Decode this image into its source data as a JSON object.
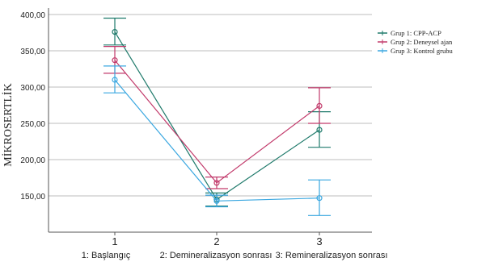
{
  "chart_data": {
    "type": "line",
    "ylabel": "MİKROSERTLİK",
    "ylim": [
      125,
      400
    ],
    "y_ticks": [
      "150,00",
      "200,00",
      "250,00",
      "300,00",
      "350,00",
      "400,00"
    ],
    "y_tick_values": [
      150,
      200,
      250,
      300,
      350,
      400
    ],
    "x": [
      "1",
      "2",
      "3"
    ],
    "x_category_labels": [
      "1: Başlangıç",
      "2: Demineralizasyon sonrası",
      "3: Remineralizasyon sonrası"
    ],
    "grid": "horizontal",
    "legend_position": "top-right",
    "series": [
      {
        "name": "Grup 1: CPP-ACP",
        "color": "#1f7a6b",
        "values": [
          376,
          145,
          241
        ],
        "ci_low": [
          358,
          136,
          217
        ],
        "ci_high": [
          395,
          154,
          266
        ]
      },
      {
        "name": "Grup 2: Deneysel ajan",
        "color": "#c23a6b",
        "values": [
          337,
          168,
          274
        ],
        "ci_low": [
          319,
          160,
          250
        ],
        "ci_high": [
          356,
          176,
          299
        ]
      },
      {
        "name": "Grup 3: Kontrol grubu",
        "color": "#3aa7e0",
        "values": [
          310,
          143,
          147
        ],
        "ci_low": [
          292,
          135,
          123
        ],
        "ci_high": [
          329,
          151,
          172
        ]
      }
    ]
  }
}
